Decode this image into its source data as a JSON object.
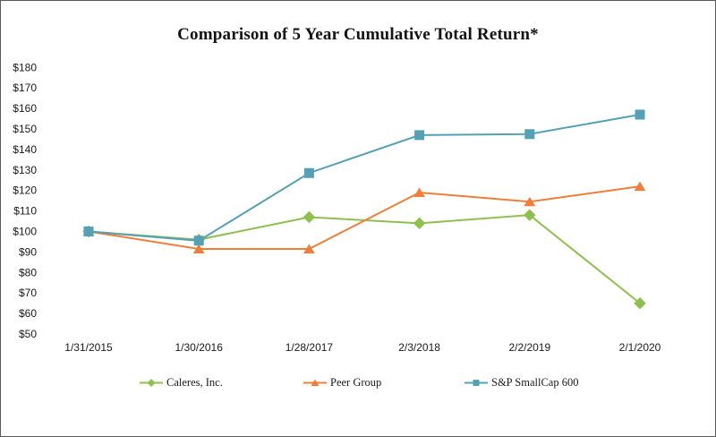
{
  "chart_data": {
    "type": "line",
    "title": "Comparison of 5 Year Cumulative Total Return*",
    "x": [
      "1/31/2015",
      "1/30/2016",
      "1/28/2017",
      "2/3/2018",
      "2/2/2019",
      "2/1/2020"
    ],
    "series": [
      {
        "name": "Caleres, Inc.",
        "marker": "diamond",
        "color": "#8DC04E",
        "values": [
          100,
          96,
          107,
          104,
          108,
          65
        ]
      },
      {
        "name": "Peer Group",
        "marker": "triangle",
        "color": "#EE7F3B",
        "values": [
          100,
          91.5,
          91.5,
          119,
          114.5,
          122
        ]
      },
      {
        "name": "S&P SmallCap 600",
        "marker": "square",
        "color": "#55A0B4",
        "values": [
          100,
          95.5,
          128.5,
          147,
          147.5,
          157
        ]
      }
    ],
    "ylim": [
      50,
      180
    ],
    "ytick_step": 10,
    "ytick_prefix": "$",
    "ytick_labels": [
      "$180",
      "$170",
      "$160",
      "$150",
      "$140",
      "$130",
      "$120",
      "$110",
      "$100",
      "$90",
      "$80",
      "$70",
      "$60",
      "$50"
    ],
    "xlabel": "",
    "ylabel": "",
    "grid": false,
    "legend_position": "bottom"
  }
}
